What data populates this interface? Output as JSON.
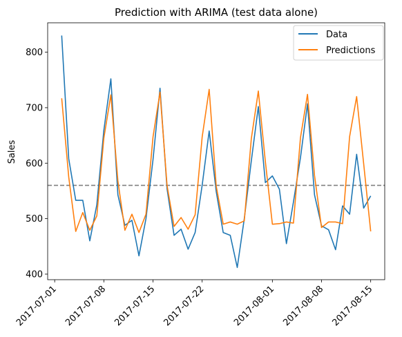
{
  "chart_data": {
    "type": "line",
    "title": "Prediction with ARIMA (test data alone)",
    "xlabel": "",
    "ylabel": "Sales",
    "x_start": "2017-07-02",
    "x_end": "2017-08-15",
    "xlim": [
      "2017-06-30",
      "2017-08-17"
    ],
    "ylim": [
      390,
      853
    ],
    "xticks": [
      "2017-07-01",
      "2017-07-08",
      "2017-07-15",
      "2017-07-22",
      "2017-08-01",
      "2017-08-08",
      "2017-08-15"
    ],
    "yticks": [
      400,
      500,
      600,
      700,
      800
    ],
    "grid": false,
    "legend": "upper right",
    "reference_line": {
      "y": 560,
      "style": "dashed",
      "color": "#808080"
    },
    "series": [
      {
        "name": "Data",
        "color": "#1f77b4",
        "values": [
          830,
          608,
          533,
          533,
          460,
          525,
          659,
          752,
          543,
          488,
          497,
          433,
          500,
          606,
          735,
          554,
          470,
          481,
          445,
          475,
          560,
          658,
          549,
          475,
          470,
          412,
          500,
          604,
          702,
          565,
          577,
          553,
          455,
          530,
          610,
          707,
          543,
          487,
          480,
          444,
          523,
          508,
          616,
          519,
          541
        ]
      },
      {
        "name": "Predictions",
        "color": "#ff7f0e",
        "values": [
          717,
          575,
          477,
          511,
          479,
          505,
          645,
          723,
          568,
          479,
          508,
          475,
          508,
          647,
          728,
          560,
          486,
          502,
          481,
          507,
          647,
          733,
          559,
          490,
          494,
          490,
          496,
          644,
          730,
          603,
          490,
          491,
          494,
          492,
          646,
          724,
          578,
          484,
          494,
          494,
          491,
          648,
          720,
          599,
          477
        ]
      }
    ]
  }
}
